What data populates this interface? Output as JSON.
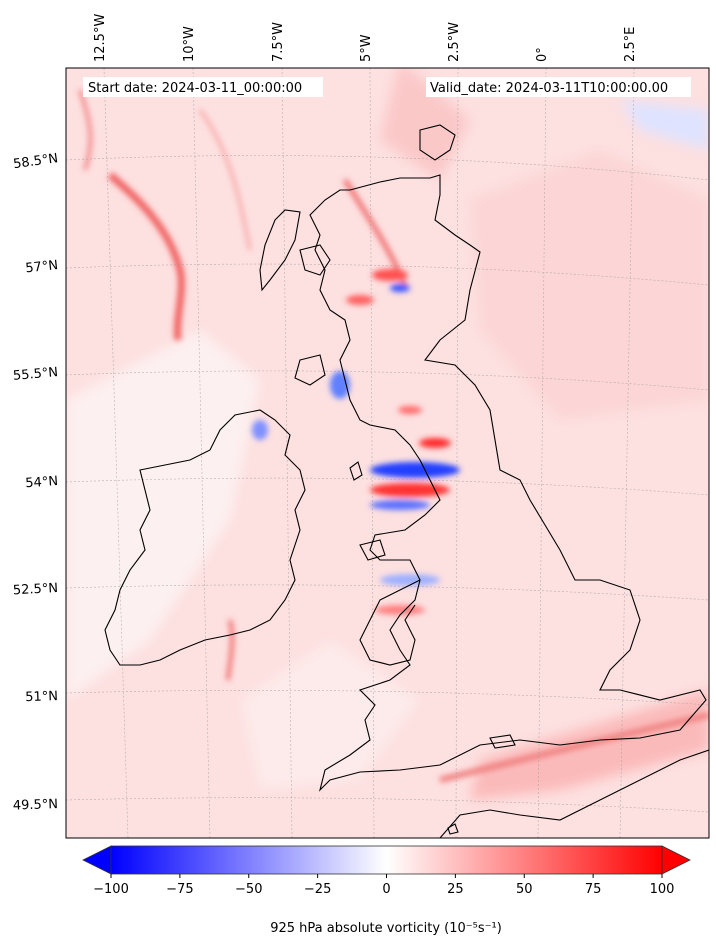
{
  "header": {
    "start_label": "Start date: 2024-03-11_00:00:00",
    "valid_label": "Valid_date: 2024-03-11T10:00:00.00"
  },
  "lon_ticks": [
    "12.5°W",
    "10°W",
    "7.5°W",
    "5°W",
    "2.5°W",
    "0°",
    "2.5°E"
  ],
  "lat_ticks": [
    "58.5°N",
    "57°N",
    "55.5°N",
    "54°N",
    "52.5°N",
    "51°N",
    "49.5°N"
  ],
  "colorbar": {
    "ticks": [
      "−100",
      "−75",
      "−50",
      "−25",
      "0",
      "25",
      "50",
      "75",
      "100"
    ],
    "tick_values": [
      -100,
      -75,
      -50,
      -25,
      0,
      25,
      50,
      75,
      100
    ],
    "range": [
      -100,
      100
    ],
    "extend": "both",
    "colormap": "bwr",
    "low_color": "#0000ff",
    "mid_color": "#ffffff",
    "high_color": "#ff0000",
    "label": "925 hPa absolute vorticity (10⁻⁵s⁻¹)"
  },
  "colors": {
    "background_tint": "#fde0e0",
    "coastline": "#000000"
  }
}
